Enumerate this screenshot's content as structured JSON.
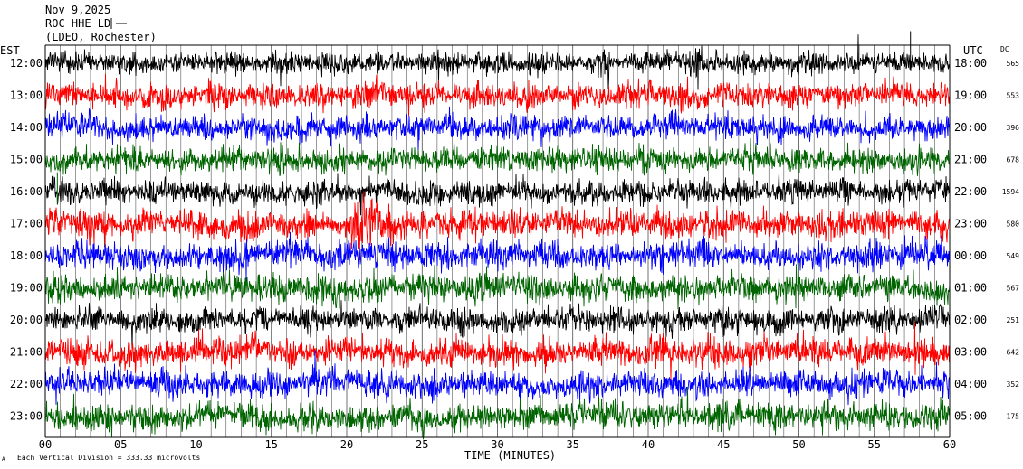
{
  "header": {
    "date": "Nov 9,2025",
    "station": "ROC HHE LD",
    "network": "(LDEO, Rochester)"
  },
  "labels": {
    "left_tz": "EST",
    "right_tz": "UTC",
    "dc": "DC",
    "xlabel": "TIME (MINUTES)",
    "scale_note": "Each Vertical Division =  333.33 microvolts",
    "corner_mark": "A"
  },
  "colors": [
    "#000000",
    "#ff0000",
    "#0000ff",
    "#006400"
  ],
  "chart_data": {
    "type": "line",
    "title": "Nov 9,2025",
    "xlabel": "TIME (MINUTES)",
    "ylabel": "",
    "xlim": [
      0,
      60
    ],
    "x_ticks": [
      "00",
      "05",
      "10",
      "15",
      "20",
      "25",
      "30",
      "35",
      "40",
      "45",
      "50",
      "55",
      "60"
    ],
    "grid": "vertical lines every minute",
    "rows": [
      {
        "est": "12:00",
        "utc": "18:00",
        "dc": "565",
        "color_index": 0,
        "amplitude": 0.7
      },
      {
        "est": "13:00",
        "utc": "19:00",
        "dc": "553",
        "color_index": 1,
        "amplitude": 0.8
      },
      {
        "est": "14:00",
        "utc": "20:00",
        "dc": "396",
        "color_index": 2,
        "amplitude": 0.8
      },
      {
        "est": "15:00",
        "utc": "21:00",
        "dc": "678",
        "color_index": 3,
        "amplitude": 0.8
      },
      {
        "est": "16:00",
        "utc": "22:00",
        "dc": "1594",
        "color_index": 0,
        "amplitude": 0.8
      },
      {
        "est": "17:00",
        "utc": "23:00",
        "dc": "580",
        "color_index": 1,
        "amplitude": 0.9
      },
      {
        "est": "18:00",
        "utc": "00:00",
        "dc": "549",
        "color_index": 2,
        "amplitude": 0.9
      },
      {
        "est": "19:00",
        "utc": "01:00",
        "dc": "567",
        "color_index": 3,
        "amplitude": 0.9
      },
      {
        "est": "20:00",
        "utc": "02:00",
        "dc": "251",
        "color_index": 0,
        "amplitude": 0.8
      },
      {
        "est": "21:00",
        "utc": "03:00",
        "dc": "642",
        "color_index": 1,
        "amplitude": 0.9
      },
      {
        "est": "22:00",
        "utc": "04:00",
        "dc": "352",
        "color_index": 2,
        "amplitude": 0.9
      },
      {
        "est": "23:00",
        "utc": "05:00",
        "dc": "175",
        "color_index": 3,
        "amplitude": 0.9
      }
    ],
    "events": [
      {
        "row_index": 5,
        "start_min": 20.0,
        "end_min": 23.3,
        "amplitude": 2.3
      },
      {
        "row_index": 0,
        "start_min": 36.5,
        "end_min": 37.5,
        "amplitude": 1.8
      },
      {
        "row_index": 0,
        "start_min": 42.5,
        "end_min": 43.7,
        "amplitude": 2.0
      },
      {
        "row_index": 2,
        "start_min": 0.0,
        "end_min": 2.0,
        "amplitude": 1.6
      },
      {
        "row_index": 8,
        "start_min": 17.0,
        "end_min": 18.0,
        "amplitude": 1.5
      },
      {
        "row_index": 11,
        "start_min": 36.5,
        "end_min": 37.3,
        "amplitude": 1.8
      }
    ],
    "spikes": [
      {
        "minute": 10.0,
        "color_index": 1,
        "from_row": -0.6,
        "to_row": 11.7
      },
      {
        "minute": 57.4,
        "color_index": 0,
        "from_row": -1.0,
        "to_row": 0.0
      },
      {
        "minute": 0.8,
        "color_index": 3,
        "from_row": 3.4,
        "to_row": 4.4
      }
    ]
  }
}
